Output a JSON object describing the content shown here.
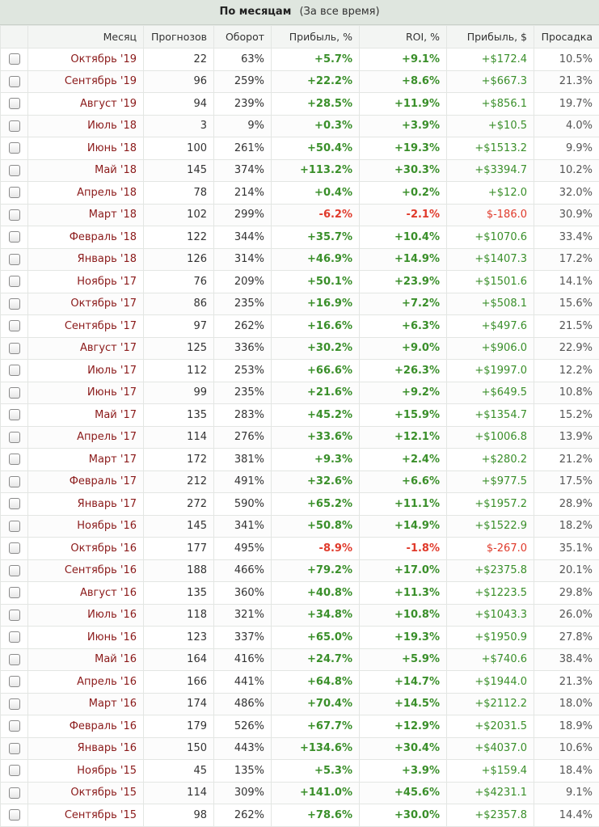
{
  "header": {
    "title": "По месяцам",
    "subtitle": "(За все время)"
  },
  "columns": [
    "Месяц",
    "Прогнозов",
    "Оборот",
    "Прибыль, %",
    "ROI, %",
    "Прибыль, $",
    "Просадка"
  ],
  "rows": [
    [
      "Октябрь '19",
      "22",
      "63%",
      "+5.7%",
      "+9.1%",
      "+$172.4",
      "10.5%"
    ],
    [
      "Сентябрь '19",
      "96",
      "259%",
      "+22.2%",
      "+8.6%",
      "+$667.3",
      "21.3%"
    ],
    [
      "Август '19",
      "94",
      "239%",
      "+28.5%",
      "+11.9%",
      "+$856.1",
      "19.7%"
    ],
    [
      "Июль '18",
      "3",
      "9%",
      "+0.3%",
      "+3.9%",
      "+$10.5",
      "4.0%"
    ],
    [
      "Июнь '18",
      "100",
      "261%",
      "+50.4%",
      "+19.3%",
      "+$1513.2",
      "9.9%"
    ],
    [
      "Май '18",
      "145",
      "374%",
      "+113.2%",
      "+30.3%",
      "+$3394.7",
      "10.2%"
    ],
    [
      "Апрель '18",
      "78",
      "214%",
      "+0.4%",
      "+0.2%",
      "+$12.0",
      "32.0%"
    ],
    [
      "Март '18",
      "102",
      "299%",
      "-6.2%",
      "-2.1%",
      "$-186.0",
      "30.9%"
    ],
    [
      "Февраль '18",
      "122",
      "344%",
      "+35.7%",
      "+10.4%",
      "+$1070.6",
      "33.4%"
    ],
    [
      "Январь '18",
      "126",
      "314%",
      "+46.9%",
      "+14.9%",
      "+$1407.3",
      "17.2%"
    ],
    [
      "Ноябрь '17",
      "76",
      "209%",
      "+50.1%",
      "+23.9%",
      "+$1501.6",
      "14.1%"
    ],
    [
      "Октябрь '17",
      "86",
      "235%",
      "+16.9%",
      "+7.2%",
      "+$508.1",
      "15.6%"
    ],
    [
      "Сентябрь '17",
      "97",
      "262%",
      "+16.6%",
      "+6.3%",
      "+$497.6",
      "21.5%"
    ],
    [
      "Август '17",
      "125",
      "336%",
      "+30.2%",
      "+9.0%",
      "+$906.0",
      "22.9%"
    ],
    [
      "Июль '17",
      "112",
      "253%",
      "+66.6%",
      "+26.3%",
      "+$1997.0",
      "12.2%"
    ],
    [
      "Июнь '17",
      "99",
      "235%",
      "+21.6%",
      "+9.2%",
      "+$649.5",
      "10.8%"
    ],
    [
      "Май '17",
      "135",
      "283%",
      "+45.2%",
      "+15.9%",
      "+$1354.7",
      "15.2%"
    ],
    [
      "Апрель '17",
      "114",
      "276%",
      "+33.6%",
      "+12.1%",
      "+$1006.8",
      "13.9%"
    ],
    [
      "Март '17",
      "172",
      "381%",
      "+9.3%",
      "+2.4%",
      "+$280.2",
      "21.2%"
    ],
    [
      "Февраль '17",
      "212",
      "491%",
      "+32.6%",
      "+6.6%",
      "+$977.5",
      "17.5%"
    ],
    [
      "Январь '17",
      "272",
      "590%",
      "+65.2%",
      "+11.1%",
      "+$1957.2",
      "28.9%"
    ],
    [
      "Ноябрь '16",
      "145",
      "341%",
      "+50.8%",
      "+14.9%",
      "+$1522.9",
      "18.2%"
    ],
    [
      "Октябрь '16",
      "177",
      "495%",
      "-8.9%",
      "-1.8%",
      "$-267.0",
      "35.1%"
    ],
    [
      "Сентябрь '16",
      "188",
      "466%",
      "+79.2%",
      "+17.0%",
      "+$2375.8",
      "20.1%"
    ],
    [
      "Август '16",
      "135",
      "360%",
      "+40.8%",
      "+11.3%",
      "+$1223.5",
      "29.8%"
    ],
    [
      "Июль '16",
      "118",
      "321%",
      "+34.8%",
      "+10.8%",
      "+$1043.3",
      "26.0%"
    ],
    [
      "Июнь '16",
      "123",
      "337%",
      "+65.0%",
      "+19.3%",
      "+$1950.9",
      "27.8%"
    ],
    [
      "Май '16",
      "164",
      "416%",
      "+24.7%",
      "+5.9%",
      "+$740.6",
      "38.4%"
    ],
    [
      "Апрель '16",
      "166",
      "441%",
      "+64.8%",
      "+14.7%",
      "+$1944.0",
      "21.3%"
    ],
    [
      "Март '16",
      "174",
      "486%",
      "+70.4%",
      "+14.5%",
      "+$2112.2",
      "18.0%"
    ],
    [
      "Февраль '16",
      "179",
      "526%",
      "+67.7%",
      "+12.9%",
      "+$2031.5",
      "18.9%"
    ],
    [
      "Январь '16",
      "150",
      "443%",
      "+134.6%",
      "+30.4%",
      "+$4037.0",
      "10.6%"
    ],
    [
      "Ноябрь '15",
      "45",
      "135%",
      "+5.3%",
      "+3.9%",
      "+$159.4",
      "18.4%"
    ],
    [
      "Октябрь '15",
      "114",
      "309%",
      "+141.0%",
      "+45.6%",
      "+$4231.1",
      "9.1%"
    ],
    [
      "Сентябрь '15",
      "98",
      "262%",
      "+78.6%",
      "+30.0%",
      "+$2357.8",
      "14.4%"
    ]
  ]
}
